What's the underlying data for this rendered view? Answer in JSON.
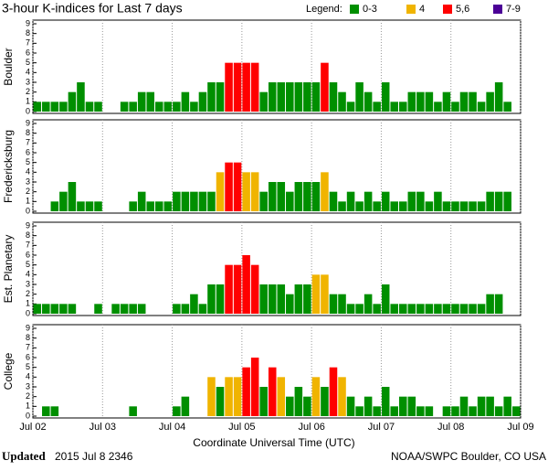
{
  "header": {
    "title": "3-hour K-indices for Last 7 days",
    "legend_title": "Legend:",
    "legend": [
      {
        "label": "0-3",
        "color": "#008f00"
      },
      {
        "label": "4",
        "color": "#f0b400"
      },
      {
        "label": "5,6",
        "color": "#ff0000"
      },
      {
        "label": "7-9",
        "color": "#4b0096"
      }
    ]
  },
  "chart_data": [
    {
      "type": "bar",
      "ylabel": "Boulder",
      "ylim": [
        0,
        9
      ],
      "yticks": [
        0,
        1,
        2,
        3,
        4,
        5,
        6,
        7,
        8,
        9
      ],
      "values": [
        1,
        1,
        1,
        1,
        2,
        3,
        1,
        1,
        0,
        0,
        1,
        1,
        2,
        2,
        1,
        1,
        1,
        2,
        1,
        2,
        3,
        3,
        5,
        5,
        5,
        5,
        2,
        3,
        3,
        3,
        3,
        3,
        3,
        5,
        3,
        2,
        1,
        3,
        2,
        1,
        3,
        1,
        1,
        2,
        2,
        2,
        1,
        2,
        1,
        2,
        2,
        1,
        2,
        3,
        1,
        0
      ]
    },
    {
      "type": "bar",
      "ylabel": "Fredericksburg",
      "ylim": [
        0,
        9
      ],
      "yticks": [
        0,
        1,
        2,
        3,
        4,
        5,
        6,
        7,
        8,
        9
      ],
      "values": [
        0,
        0,
        1,
        2,
        3,
        1,
        1,
        1,
        0,
        0,
        0,
        1,
        2,
        1,
        1,
        1,
        2,
        2,
        2,
        2,
        2,
        4,
        5,
        5,
        4,
        4,
        2,
        3,
        3,
        2,
        3,
        3,
        3,
        4,
        2,
        1,
        2,
        1,
        2,
        1,
        2,
        1,
        1,
        2,
        2,
        1,
        2,
        1,
        1,
        1,
        1,
        1,
        2,
        2,
        2,
        0
      ]
    },
    {
      "type": "bar",
      "ylabel": "Est. Planetary",
      "ylim": [
        0,
        9
      ],
      "yticks": [
        0,
        1,
        2,
        3,
        4,
        5,
        6,
        7,
        8,
        9
      ],
      "values": [
        1,
        1,
        1,
        1,
        1,
        0,
        0,
        1,
        0,
        1,
        1,
        1,
        1,
        0,
        0,
        0,
        1,
        1,
        2,
        1,
        3,
        3,
        5,
        5,
        6,
        5,
        3,
        3,
        3,
        2,
        3,
        3,
        4,
        4,
        2,
        2,
        1,
        1,
        2,
        1,
        3,
        1,
        1,
        1,
        1,
        1,
        1,
        1,
        1,
        1,
        1,
        1,
        2,
        2,
        0,
        0
      ]
    },
    {
      "type": "bar",
      "ylabel": "College",
      "ylim": [
        0,
        9
      ],
      "yticks": [
        0,
        1,
        2,
        3,
        4,
        5,
        6,
        7,
        8,
        9
      ],
      "values": [
        0,
        1,
        1,
        0,
        0,
        0,
        0,
        0,
        0,
        0,
        0,
        1,
        0,
        0,
        0,
        0,
        1,
        2,
        0,
        0,
        4,
        3,
        4,
        4,
        5,
        6,
        3,
        5,
        4,
        2,
        3,
        2,
        4,
        3,
        5,
        4,
        2,
        1,
        2,
        1,
        3,
        1,
        2,
        2,
        1,
        1,
        0,
        1,
        1,
        2,
        1,
        2,
        2,
        1,
        2,
        1
      ],
      "xticks": [
        "Jul 02",
        "Jul 03",
        "Jul 04",
        "Jul 05",
        "Jul 06",
        "Jul 07",
        "Jul 08",
        "Jul 09"
      ],
      "xlabel": "Coordinate Universal Time (UTC)"
    }
  ],
  "footer": {
    "updated_label": "Updated",
    "updated_time": "2015 Jul  8 2346",
    "credit": "NOAA/SWPC Boulder, CO USA"
  }
}
